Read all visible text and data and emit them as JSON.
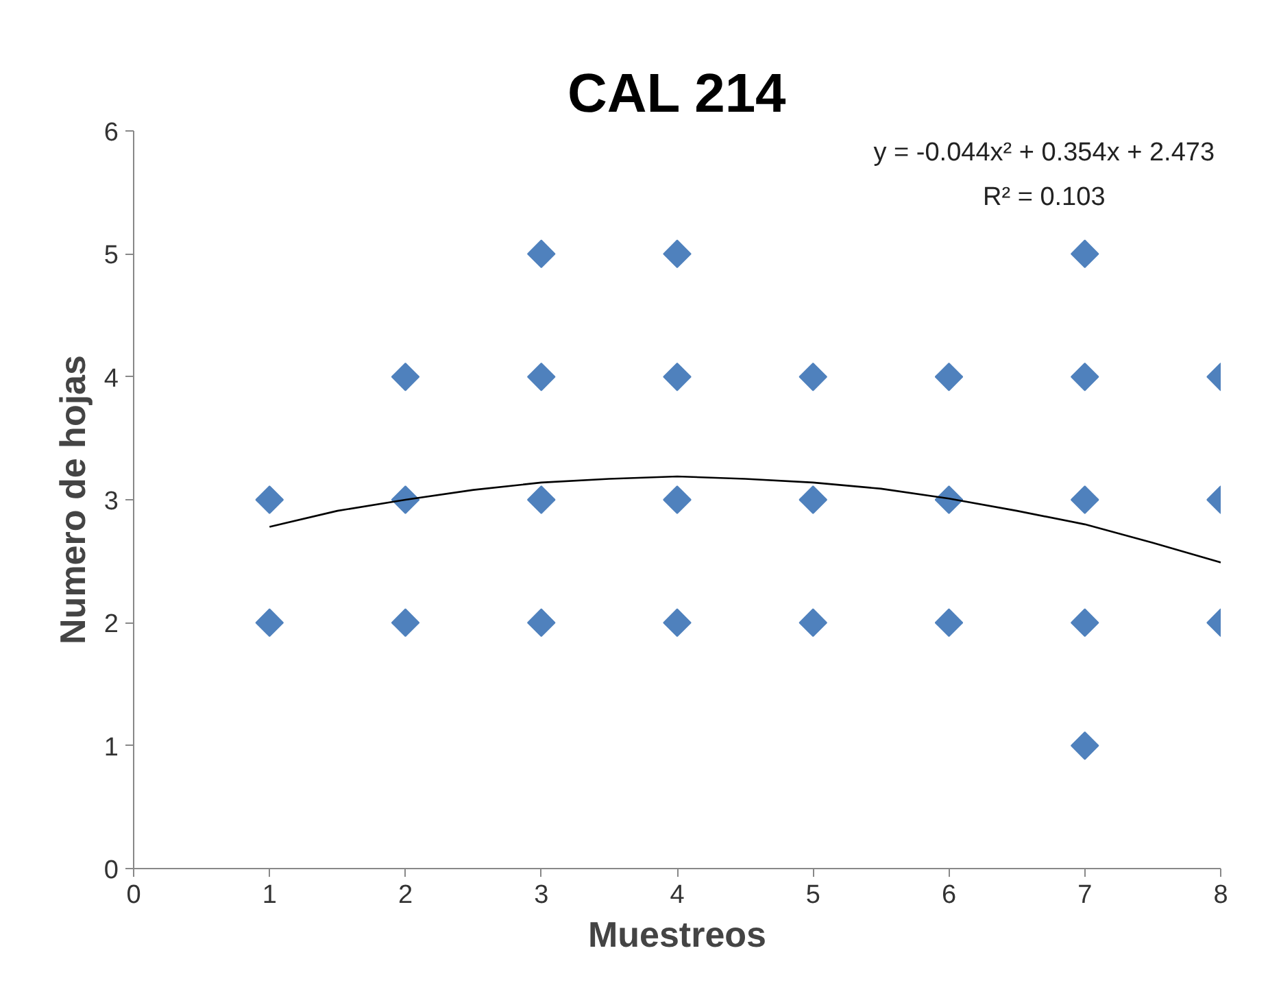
{
  "chart_data": {
    "type": "scatter",
    "title": "CAL 214",
    "xlabel": "Muestreos",
    "ylabel": "Numero de hojas",
    "xlim": [
      0,
      8
    ],
    "ylim": [
      0,
      6
    ],
    "xticks": [
      0,
      1,
      2,
      3,
      4,
      5,
      6,
      7,
      8
    ],
    "yticks": [
      0,
      1,
      2,
      3,
      4,
      5,
      6
    ],
    "grid": false,
    "marker": "diamond",
    "annotations": [
      "y = -0.044x² + 0.354x + 2.473",
      "R² = 0.103"
    ],
    "series": [
      {
        "color": "#4f81bd",
        "x": [
          1,
          1,
          2,
          2,
          2,
          3,
          3,
          3,
          3,
          4,
          4,
          4,
          4,
          5,
          5,
          5,
          6,
          6,
          6,
          7,
          7,
          7,
          7,
          7,
          8,
          8,
          8
        ],
        "values": [
          3,
          2,
          4,
          3,
          2,
          5,
          4,
          3,
          2,
          5,
          4,
          3,
          2,
          4,
          3,
          2,
          4,
          3,
          2,
          5,
          4,
          3,
          2,
          1,
          4,
          3,
          2
        ]
      },
      {
        "type": "line",
        "marker": "none",
        "color": "#000000",
        "line_style": "solid",
        "x": [
          1,
          1.5,
          2,
          2.5,
          3,
          3.5,
          4,
          4.5,
          5,
          5.5,
          6,
          6.5,
          7,
          7.5,
          8
        ],
        "values": [
          2.78,
          2.91,
          3.0,
          3.08,
          3.14,
          3.17,
          3.19,
          3.17,
          3.14,
          3.09,
          3.01,
          2.91,
          2.8,
          2.65,
          2.49
        ]
      }
    ]
  }
}
